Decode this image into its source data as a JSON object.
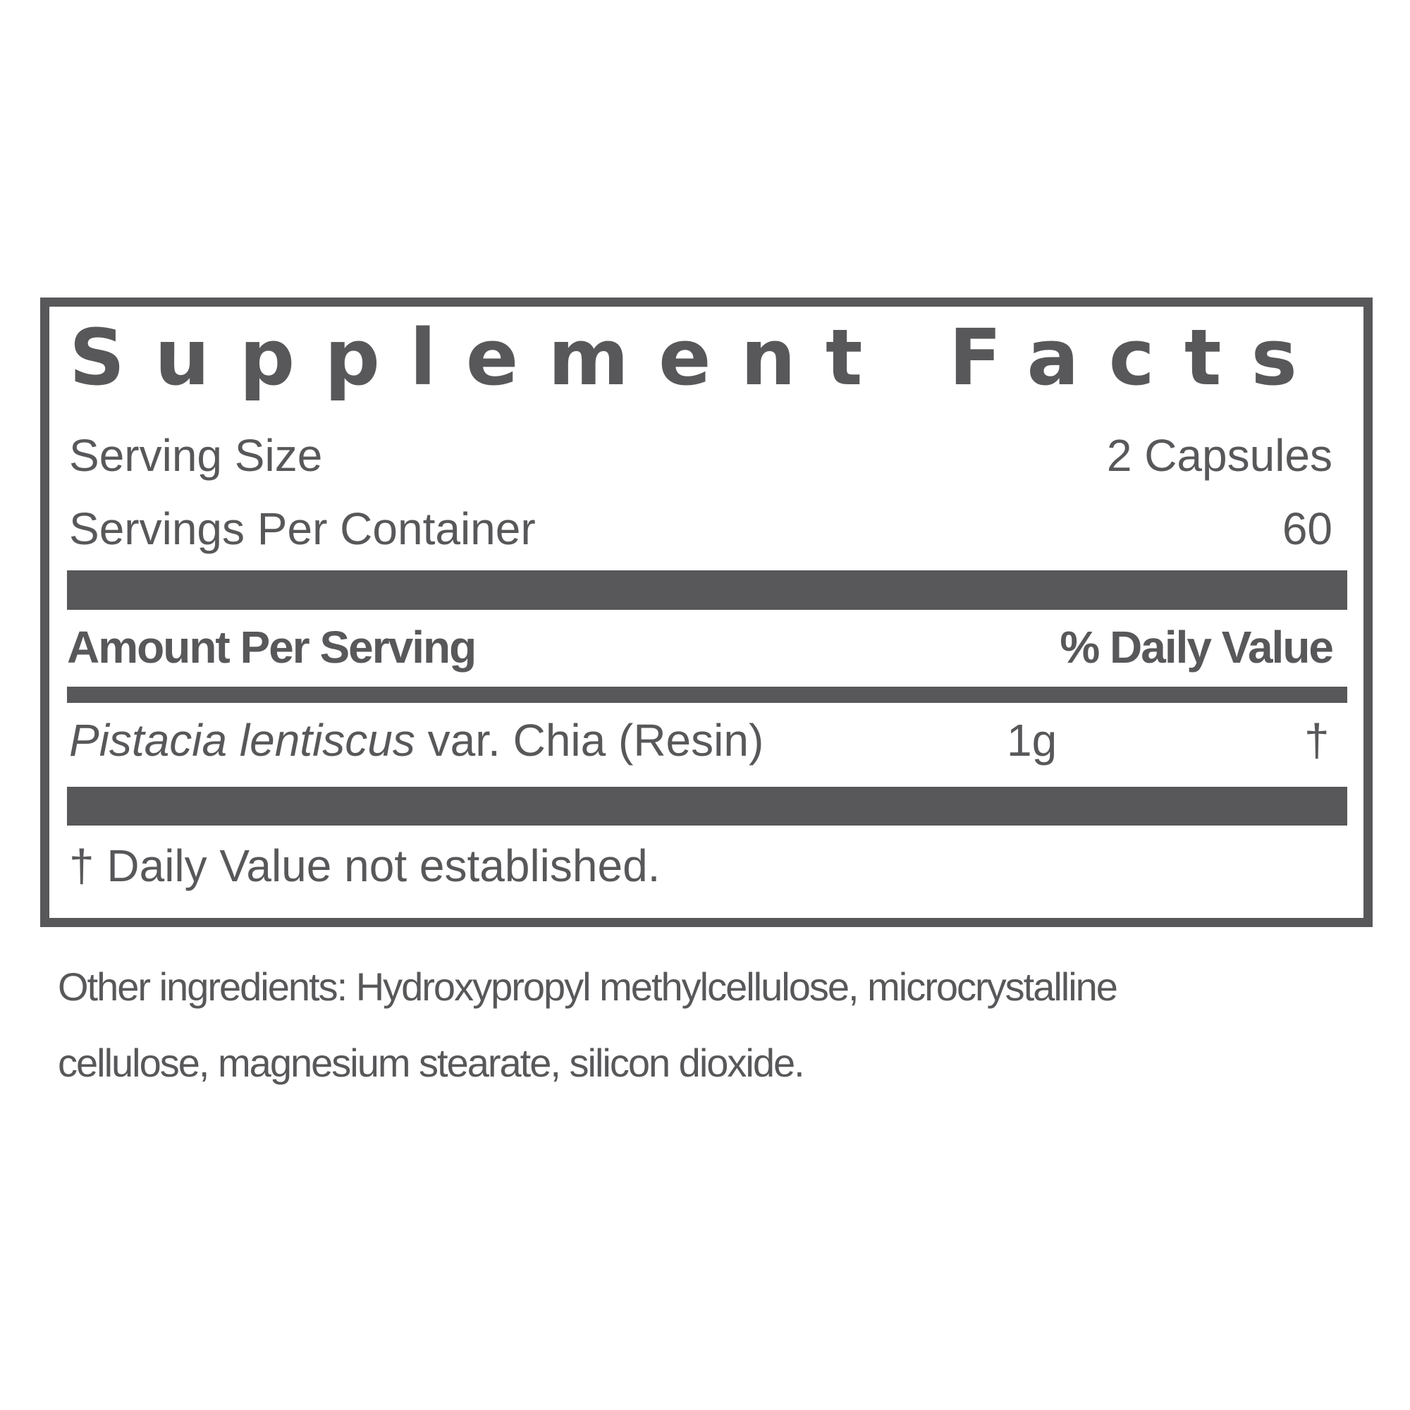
{
  "title": "Supplement Facts",
  "serving_size": {
    "label": "Serving Size",
    "value": "2 Capsules"
  },
  "servings_per_container": {
    "label": "Servings Per Container",
    "value": "60"
  },
  "header": {
    "amount": "Amount Per Serving",
    "daily_value": "% Daily Value"
  },
  "ingredients": [
    {
      "name_italic": "Pistacia lentiscus",
      "name_rest": " var. Chia (Resin)",
      "amount": "1g",
      "dv": "†"
    }
  ],
  "footnote": "† Daily Value not established.",
  "other_ingredients": {
    "line1": "Other ingredients: Hydroxypropyl methylcellulose, microcrystalline",
    "line2": "cellulose, magnesium stearate, silicon dioxide."
  },
  "colors": {
    "ink": "#58585b",
    "background": "#ffffff"
  }
}
